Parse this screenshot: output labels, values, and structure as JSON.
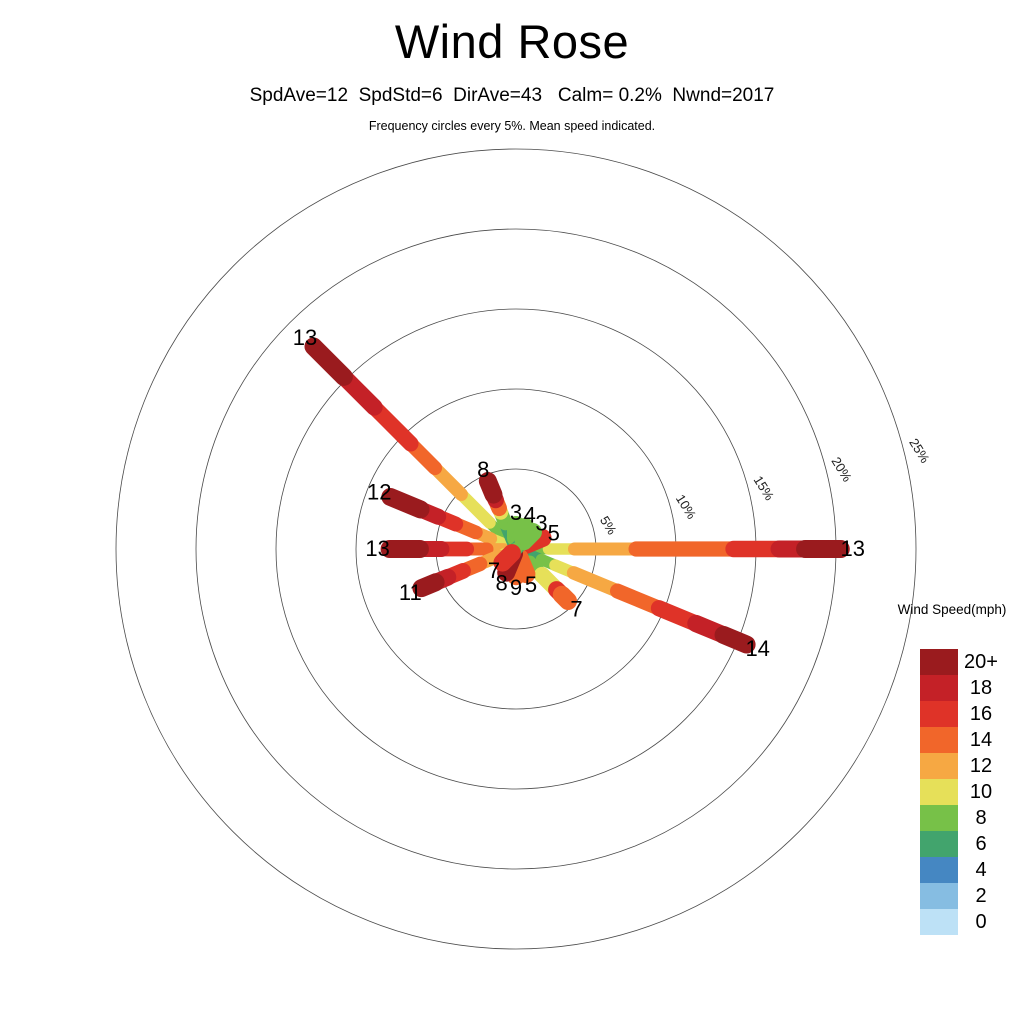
{
  "header": {
    "title": "Wind Rose",
    "subtitle": "SpdAve=12  SpdStd=6  DirAve=43   Calm= 0.2%  Nwnd=2017",
    "note": "Frequency circles every 5%. Mean speed indicated."
  },
  "legend": {
    "title": "Wind Speed(mph)",
    "entries": [
      {
        "label": "20+",
        "speed": "20",
        "color": "#9A1B1E"
      },
      {
        "label": "18",
        "speed": "18",
        "color": "#C42127"
      },
      {
        "label": "16",
        "speed": "16",
        "color": "#DF3328"
      },
      {
        "label": "14",
        "speed": "14",
        "color": "#F1662A"
      },
      {
        "label": "12",
        "speed": "12",
        "color": "#F6A843"
      },
      {
        "label": "10",
        "speed": "10",
        "color": "#E6E059"
      },
      {
        "label": "8",
        "speed": "8",
        "color": "#77C148"
      },
      {
        "label": "6",
        "speed": "6",
        "color": "#42A46D"
      },
      {
        "label": "4",
        "speed": "4",
        "color": "#4587C2"
      },
      {
        "label": "2",
        "speed": "2",
        "color": "#86BDE2"
      },
      {
        "label": "0",
        "speed": "0",
        "color": "#BDE1F6"
      }
    ]
  },
  "chart_data": {
    "type": "wind_rose_polar_bar",
    "stats": {
      "SpdAve": 12,
      "SpdStd": 6,
      "DirAve": 43,
      "Calm_pct": 0.2,
      "Nwnd": 2017
    },
    "frequency_ring_step_pct": 5,
    "rlim_pct": [
      0,
      25
    ],
    "rings": [
      {
        "pct": 5,
        "label": "5%"
      },
      {
        "pct": 10,
        "label": "10%"
      },
      {
        "pct": 15,
        "label": "15%"
      },
      {
        "pct": 20,
        "label": "20%"
      },
      {
        "pct": 25,
        "label": "25%"
      }
    ],
    "speed_bins_mph": [
      0,
      2,
      4,
      6,
      8,
      10,
      12,
      14,
      16,
      18,
      20
    ],
    "spokes": [
      {
        "dir": "N",
        "bearing_deg": 0,
        "freq_pct": 1.5,
        "mean_speed": "3",
        "segments": [
          [
            "6",
            0.45
          ],
          [
            "8",
            0.55
          ]
        ]
      },
      {
        "dir": "NNE",
        "bearing_deg": 22.5,
        "freq_pct": 1.5,
        "mean_speed": "4",
        "segments": [
          [
            "6",
            0.4
          ],
          [
            "8",
            0.6
          ]
        ]
      },
      {
        "dir": "NE",
        "bearing_deg": 45,
        "freq_pct": 1.5,
        "mean_speed": "3",
        "segments": [
          [
            "6",
            0.45
          ],
          [
            "8",
            0.55
          ]
        ]
      },
      {
        "dir": "ENE",
        "bearing_deg": 67.5,
        "freq_pct": 1.8,
        "mean_speed": "5",
        "segments": [
          [
            "4",
            0.35
          ],
          [
            "16",
            0.65
          ]
        ]
      },
      {
        "dir": "E",
        "bearing_deg": 90,
        "freq_pct": 20.3,
        "mean_speed": "13",
        "segments": [
          [
            "4",
            0.02
          ],
          [
            "6",
            0.04
          ],
          [
            "8",
            0.04
          ],
          [
            "10",
            0.08
          ],
          [
            "12",
            0.19
          ],
          [
            "14",
            0.3
          ],
          [
            "16",
            0.14
          ],
          [
            "18",
            0.08
          ],
          [
            "20",
            0.11
          ]
        ]
      },
      {
        "dir": "ESE",
        "bearing_deg": 112.5,
        "freq_pct": 15.6,
        "mean_speed": "14",
        "segments": [
          [
            "4",
            0.03
          ],
          [
            "6",
            0.08
          ],
          [
            "8",
            0.06
          ],
          [
            "10",
            0.08
          ],
          [
            "12",
            0.19
          ],
          [
            "14",
            0.18
          ],
          [
            "16",
            0.16
          ],
          [
            "18",
            0.12
          ],
          [
            "20",
            0.1
          ]
        ]
      },
      {
        "dir": "SE",
        "bearing_deg": 135,
        "freq_pct": 4.6,
        "mean_speed": "7",
        "segments": [
          [
            "2",
            0.06
          ],
          [
            "4",
            0.08
          ],
          [
            "6",
            0.12
          ],
          [
            "8",
            0.24
          ],
          [
            "10",
            0.28
          ],
          [
            "16",
            0.1
          ],
          [
            "14",
            0.12
          ]
        ]
      },
      {
        "dir": "SSE",
        "bearing_deg": 157.5,
        "freq_pct": 1.7,
        "mean_speed": "5",
        "segments": [
          [
            "6",
            0.35
          ],
          [
            "14",
            0.65
          ]
        ]
      },
      {
        "dir": "S",
        "bearing_deg": 180,
        "freq_pct": 1.7,
        "mean_speed": "9",
        "segments": [
          [
            "8",
            0.3
          ],
          [
            "14",
            0.7
          ]
        ]
      },
      {
        "dir": "SSW",
        "bearing_deg": 202.5,
        "freq_pct": 1.6,
        "mean_speed": "8",
        "segments": [
          [
            "6",
            0.2
          ],
          [
            "20",
            0.8
          ]
        ]
      },
      {
        "dir": "SW",
        "bearing_deg": 225,
        "freq_pct": 1.2,
        "mean_speed": "7",
        "segments": [
          [
            "8",
            0.3
          ],
          [
            "16",
            0.7
          ]
        ]
      },
      {
        "dir": "WSW",
        "bearing_deg": 247.5,
        "freq_pct": 6.4,
        "mean_speed": "11",
        "segments": [
          [
            "8",
            0.08
          ],
          [
            "10",
            0.1
          ],
          [
            "12",
            0.2
          ],
          [
            "14",
            0.18
          ],
          [
            "16",
            0.16
          ],
          [
            "18",
            0.13
          ],
          [
            "20",
            0.15
          ]
        ]
      },
      {
        "dir": "W",
        "bearing_deg": 270,
        "freq_pct": 7.9,
        "mean_speed": "13",
        "segments": [
          [
            "10",
            0.1
          ],
          [
            "12",
            0.13
          ],
          [
            "14",
            0.16
          ],
          [
            "16",
            0.2
          ],
          [
            "18",
            0.17
          ],
          [
            "20",
            0.24
          ]
        ]
      },
      {
        "dir": "WNW",
        "bearing_deg": 292.5,
        "freq_pct": 8.5,
        "mean_speed": "12",
        "segments": [
          [
            "6",
            0.04
          ],
          [
            "8",
            0.06
          ],
          [
            "10",
            0.1
          ],
          [
            "12",
            0.12
          ],
          [
            "14",
            0.16
          ],
          [
            "16",
            0.14
          ],
          [
            "18",
            0.14
          ],
          [
            "20",
            0.24
          ]
        ]
      },
      {
        "dir": "NW",
        "bearing_deg": 315,
        "freq_pct": 17.9,
        "mean_speed": "13",
        "segments": [
          [
            "4",
            0.02
          ],
          [
            "6",
            0.04
          ],
          [
            "8",
            0.07
          ],
          [
            "10",
            0.14
          ],
          [
            "12",
            0.13
          ],
          [
            "14",
            0.12
          ],
          [
            "16",
            0.18
          ],
          [
            "18",
            0.15
          ],
          [
            "20",
            0.15
          ]
        ]
      },
      {
        "dir": "NNW",
        "bearing_deg": 337.5,
        "freq_pct": 4.6,
        "mean_speed": "8",
        "segments": [
          [
            "2",
            0.06
          ],
          [
            "6",
            0.32
          ],
          [
            "8",
            0.16
          ],
          [
            "10",
            0.06
          ],
          [
            "14",
            0.12
          ],
          [
            "18",
            0.08
          ],
          [
            "20",
            0.2
          ]
        ]
      }
    ]
  }
}
